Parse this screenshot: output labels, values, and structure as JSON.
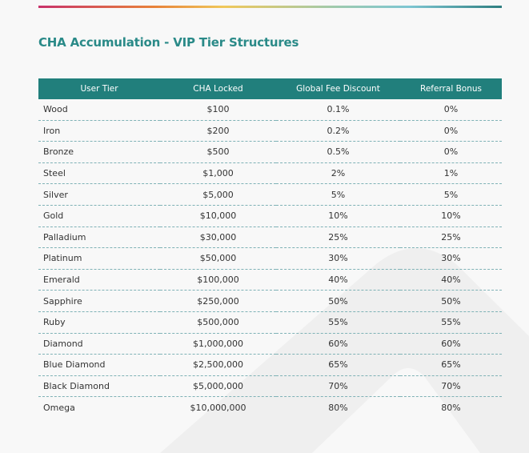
{
  "title": "CHA Accumulation - VIP Tier Structures",
  "table": {
    "headers": [
      "User Tier",
      "CHA Locked",
      "Global Fee Discount",
      "Referral Bonus"
    ],
    "rows": [
      [
        "Wood",
        "$100",
        "0.1%",
        "0%"
      ],
      [
        "Iron",
        "$200",
        "0.2%",
        "0%"
      ],
      [
        "Bronze",
        "$500",
        "0.5%",
        "0%"
      ],
      [
        "Steel",
        "$1,000",
        "2%",
        "1%"
      ],
      [
        "Silver",
        "$5,000",
        "5%",
        "5%"
      ],
      [
        "Gold",
        "$10,000",
        "10%",
        "10%"
      ],
      [
        "Palladium",
        "$30,000",
        "25%",
        "25%"
      ],
      [
        "Platinum",
        "$50,000",
        "30%",
        "30%"
      ],
      [
        "Emerald",
        "$100,000",
        "40%",
        "40%"
      ],
      [
        "Sapphire",
        "$250,000",
        "50%",
        "50%"
      ],
      [
        "Ruby",
        "$500,000",
        "55%",
        "55%"
      ],
      [
        "Diamond",
        "$1,000,000",
        "60%",
        "60%"
      ],
      [
        "Blue Diamond",
        "$2,500,000",
        "65%",
        "65%"
      ],
      [
        "Black Diamond",
        "$5,000,000",
        "70%",
        "70%"
      ],
      [
        "Omega",
        "$10,000,000",
        "80%",
        "80%"
      ]
    ]
  },
  "colors": {
    "accent": "#217f7c",
    "title": "#2a8a88",
    "divider": "#7fb2b6"
  }
}
